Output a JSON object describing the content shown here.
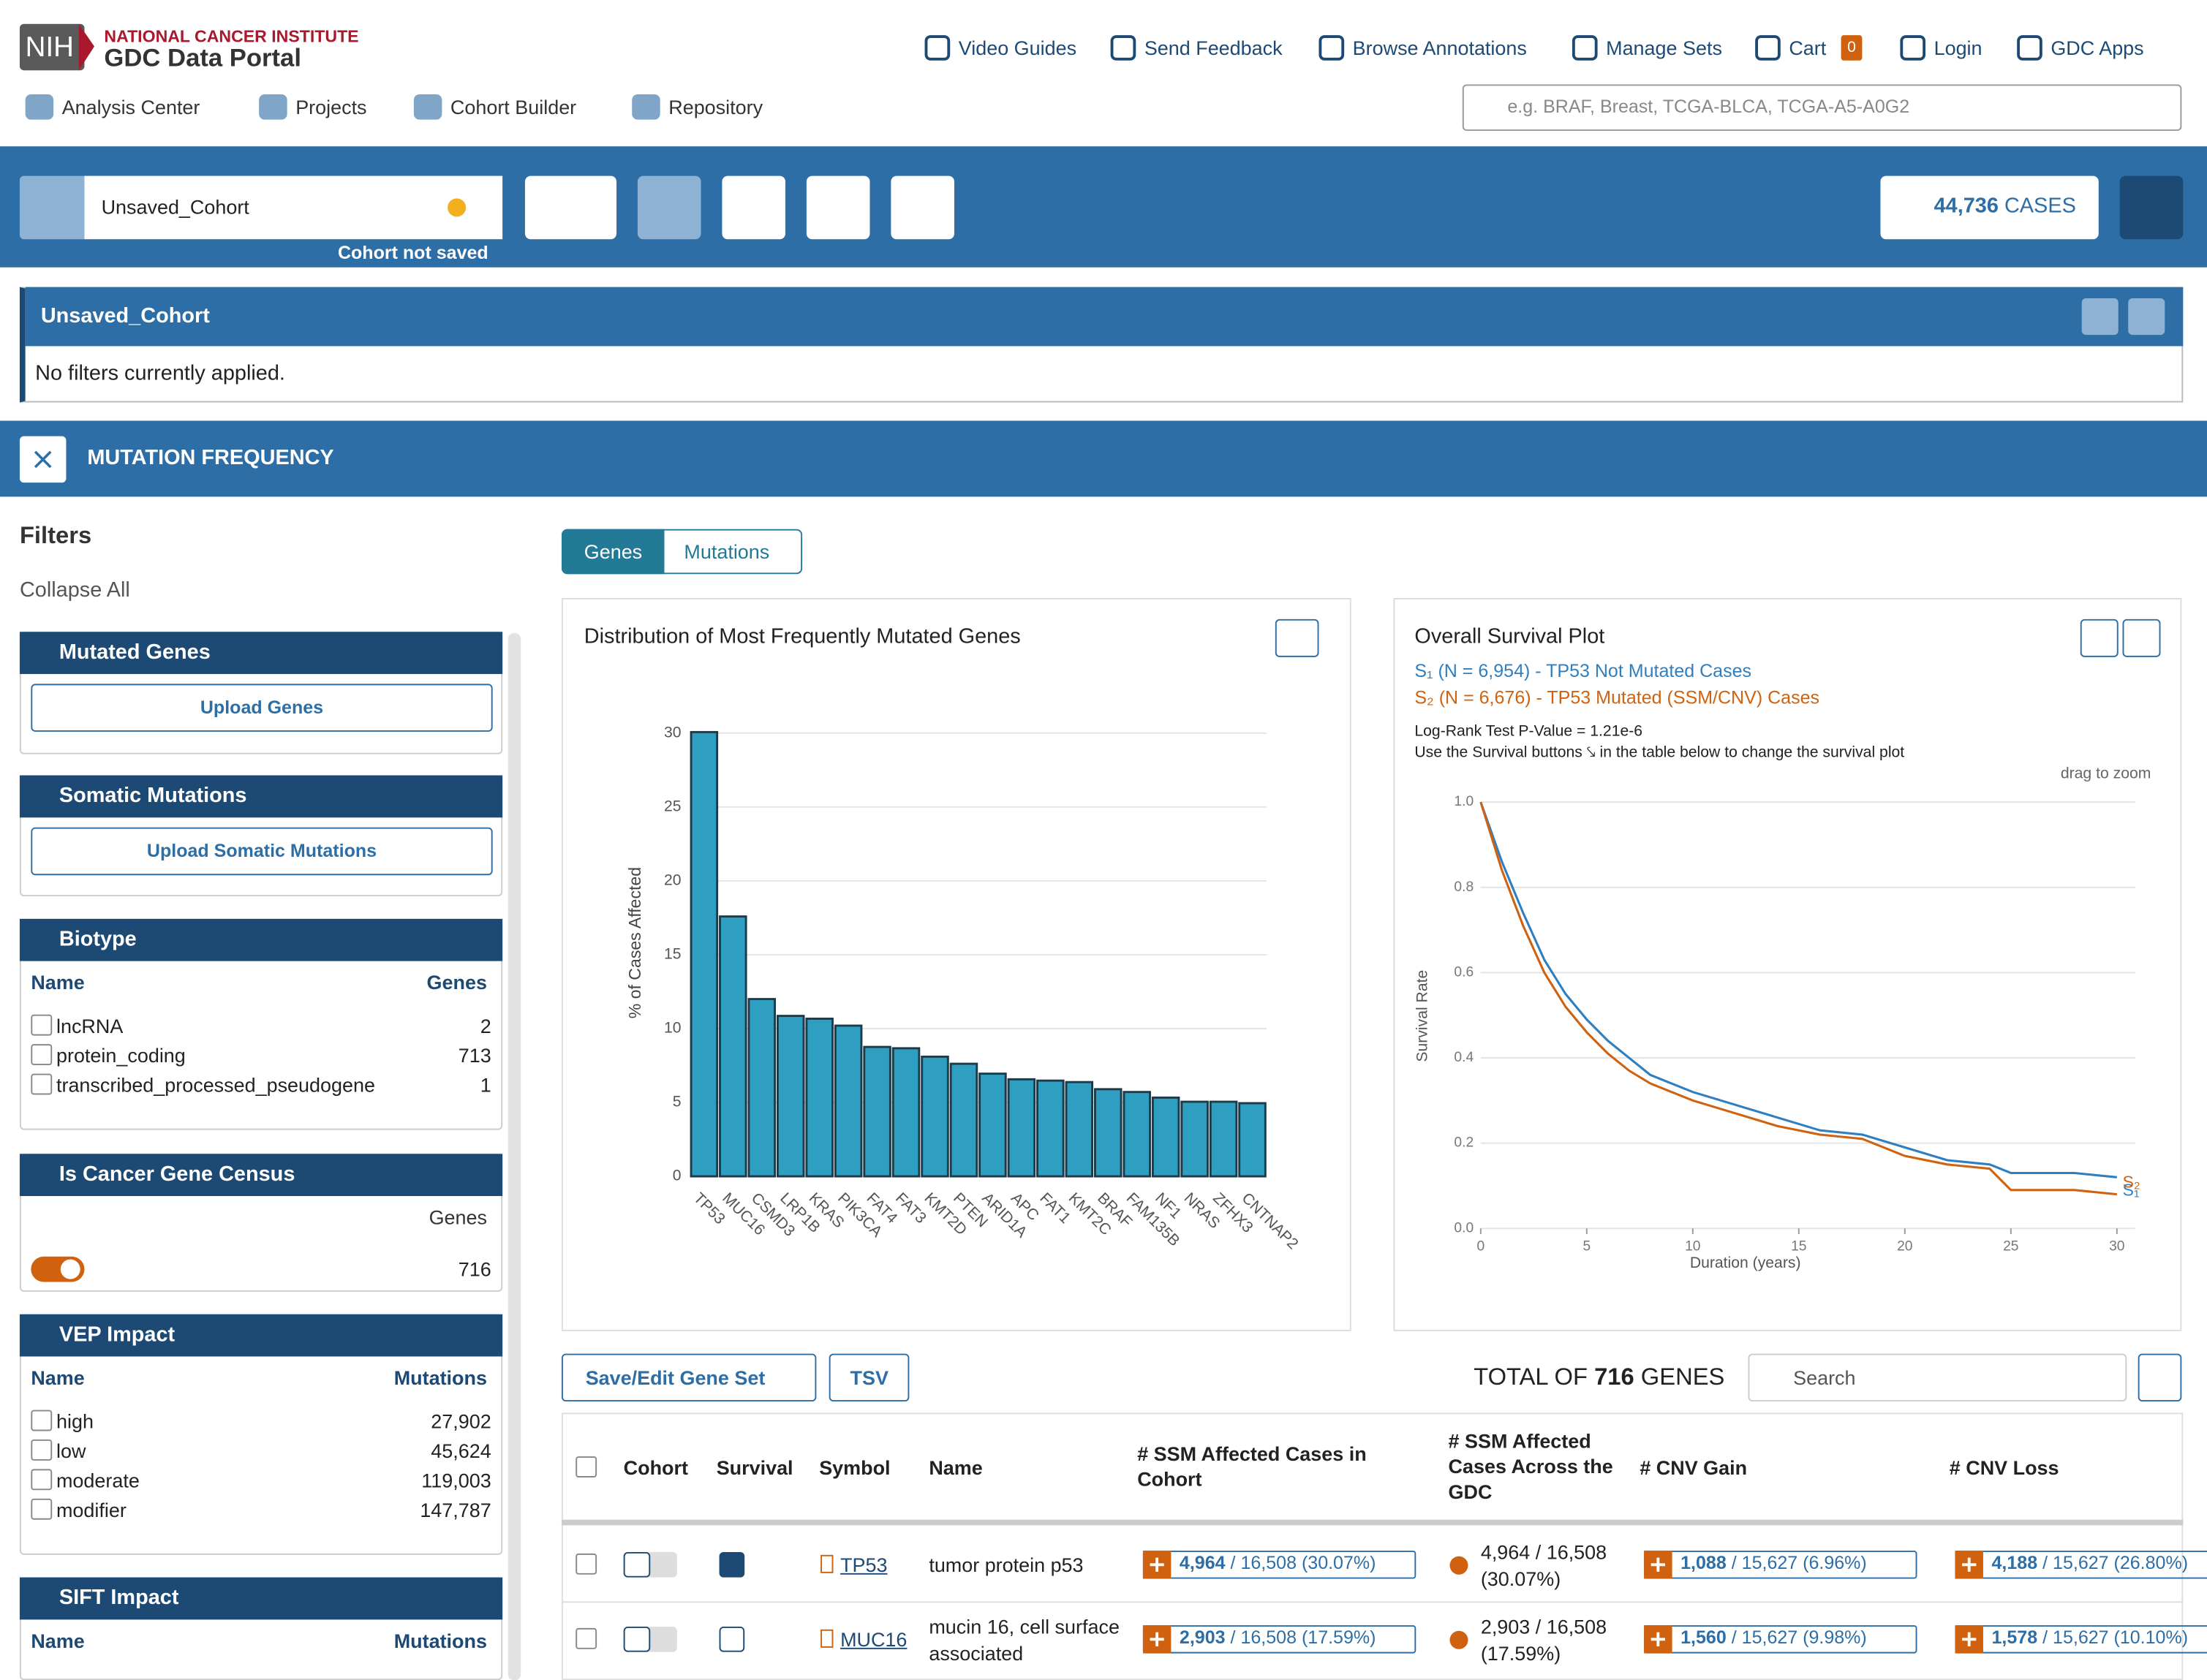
{
  "header": {
    "logo": "NIH",
    "institute": "NATIONAL CANCER INSTITUTE",
    "portal": "GDC Data Portal",
    "search_placeholder": "e.g. BRAF, Breast, TCGA-BLCA, TCGA-A5-A0G2"
  },
  "top_nav": [
    "Video Guides",
    "Send Feedback",
    "Browse Annotations",
    "Manage Sets",
    "Cart",
    "Login",
    "GDC Apps"
  ],
  "cart_count": "0",
  "main_nav": [
    "Analysis Center",
    "Projects",
    "Cohort Builder",
    "Repository"
  ],
  "cohort": {
    "name": "Unsaved_Cohort",
    "status": "Cohort not saved",
    "cases": "44,736",
    "cases_unit": "CASES",
    "panel_title": "Unsaved_Cohort",
    "filters_text": "No filters currently applied."
  },
  "tool": {
    "title": "MUTATION FREQUENCY"
  },
  "filters": {
    "title": "Filters",
    "collapse": "Collapse All",
    "cards": [
      {
        "title": "Mutated Genes",
        "button": "Upload Genes"
      },
      {
        "title": "Somatic Mutations",
        "button": "Upload Somatic Mutations"
      },
      {
        "title": "Biotype",
        "col_name": "Name",
        "col_count": "Genes",
        "rows": [
          [
            "lncRNA",
            "2"
          ],
          [
            "protein_coding",
            "713"
          ],
          [
            "transcribed_processed_pseudogene",
            "1"
          ]
        ]
      },
      {
        "title": "Is Cancer Gene Census",
        "col_count": "Genes",
        "value": "716"
      },
      {
        "title": "VEP Impact",
        "col_name": "Name",
        "col_count": "Mutations",
        "rows": [
          [
            "high",
            "27,902"
          ],
          [
            "low",
            "45,624"
          ],
          [
            "moderate",
            "119,003"
          ],
          [
            "modifier",
            "147,787"
          ]
        ]
      },
      {
        "title": "SIFT Impact",
        "col_name": "Name",
        "col_count": "Mutations"
      }
    ]
  },
  "tabs": [
    "Genes",
    "Mutations"
  ],
  "chart_data": [
    {
      "type": "bar",
      "title": "Distribution of Most Frequently Mutated Genes",
      "y_label": "% of Cases Affected",
      "categories": [
        "TP53",
        "MUC16",
        "CSMD3",
        "LRP1B",
        "KRAS",
        "PIK3CA",
        "FAT4",
        "FAT3",
        "KMT2D",
        "PTEN",
        "ARID1A",
        "APC",
        "FAT1",
        "KMT2C",
        "BRAF",
        "FAM135B",
        "NF1",
        "NRAS",
        "ZFHX3",
        "CNTNAP2"
      ],
      "values": [
        30.07,
        17.59,
        12.0,
        10.86,
        10.67,
        10.2,
        8.76,
        8.67,
        8.1,
        7.62,
        6.95,
        6.57,
        6.48,
        6.38,
        5.9,
        5.71,
        5.33,
        5.05,
        5.05,
        4.95
      ],
      "color": "#2e9fc1",
      "edge_color": "#1d3a48",
      "ylim": [
        0,
        30
      ],
      "yticks": [
        0,
        5,
        10,
        15,
        20,
        25,
        30
      ],
      "grid": true
    },
    {
      "type": "line",
      "title": "Overall Survival Plot",
      "log_rank": "Log-Rank Test P-Value = 1.21e-6",
      "hint": "Use the Survival buttons ⤥ in the table below to change the survival plot",
      "zoom_hint": "drag to zoom",
      "x_label": "Duration (years)",
      "y_label": "Survival Rate",
      "x": [
        0,
        0.5,
        1,
        2,
        3,
        4,
        5,
        6,
        7,
        8,
        9,
        10,
        12,
        14,
        16,
        18,
        20,
        22,
        24,
        25,
        28,
        30
      ],
      "series": [
        {
          "name": "S₁ (N = 6,954) - TP53 Not Mutated Cases",
          "end_label": "S₁",
          "color": "#2f7fc0",
          "values": [
            1.0,
            0.93,
            0.86,
            0.74,
            0.63,
            0.55,
            0.49,
            0.44,
            0.4,
            0.36,
            0.34,
            0.32,
            0.29,
            0.26,
            0.23,
            0.22,
            0.19,
            0.16,
            0.15,
            0.13,
            0.13,
            0.12
          ]
        },
        {
          "name": "S₂ (N = 6,676) - TP53 Mutated (SSM/CNV) Cases",
          "end_label": "S₂",
          "color": "#d0620f",
          "values": [
            1.0,
            0.92,
            0.84,
            0.71,
            0.6,
            0.52,
            0.46,
            0.41,
            0.37,
            0.34,
            0.32,
            0.3,
            0.27,
            0.24,
            0.22,
            0.21,
            0.17,
            0.15,
            0.14,
            0.09,
            0.09,
            0.08
          ]
        }
      ],
      "xlim": [
        0,
        30
      ],
      "xticks": [
        0,
        5,
        10,
        15,
        20,
        25,
        30
      ],
      "ylim": [
        0,
        1
      ],
      "yticks": [
        {
          "value": 0,
          "label": "0.0"
        },
        0.2,
        0.4,
        0.6,
        0.8,
        {
          "value": 1,
          "label": "1.0"
        }
      ],
      "grid": true
    }
  ],
  "table": {
    "save_button": "Save/Edit Gene Set",
    "tsv_button": "TSV",
    "total_prefix": "TOTAL OF",
    "total": "716",
    "total_suffix": "GENES",
    "search_placeholder": "Search",
    "columns": [
      "Cohort",
      "Survival",
      "Symbol",
      "Name",
      "# SSM Affected Cases in Cohort",
      "# SSM Affected Cases Across the GDC",
      "# CNV Gain",
      "# CNV Loss"
    ],
    "rows": [
      {
        "symbol": "TP53",
        "name": "tumor protein p53",
        "ssm_cohort": "4,964",
        "ssm_cohort_rest": "/ 16,508 (30.07%)",
        "ssm_gdc": "4,964 / 16,508 (30.07%)",
        "cnv_gain": "1,088",
        "cnv_gain_rest": "/ 15,627 (6.96%)",
        "cnv_loss": "4,188",
        "cnv_loss_rest": "/ 15,627 (26.80%)"
      },
      {
        "symbol": "MUC16",
        "name": "mucin 16, cell surface associated",
        "ssm_cohort": "2,903",
        "ssm_cohort_rest": "/ 16,508 (17.59%)",
        "ssm_gdc": "2,903 / 16,508 (17.59%)",
        "cnv_gain": "1,560",
        "cnv_gain_rest": "/ 15,627 (9.98%)",
        "cnv_loss": "1,578",
        "cnv_loss_rest": "/ 15,627 (10.10%)"
      }
    ]
  }
}
